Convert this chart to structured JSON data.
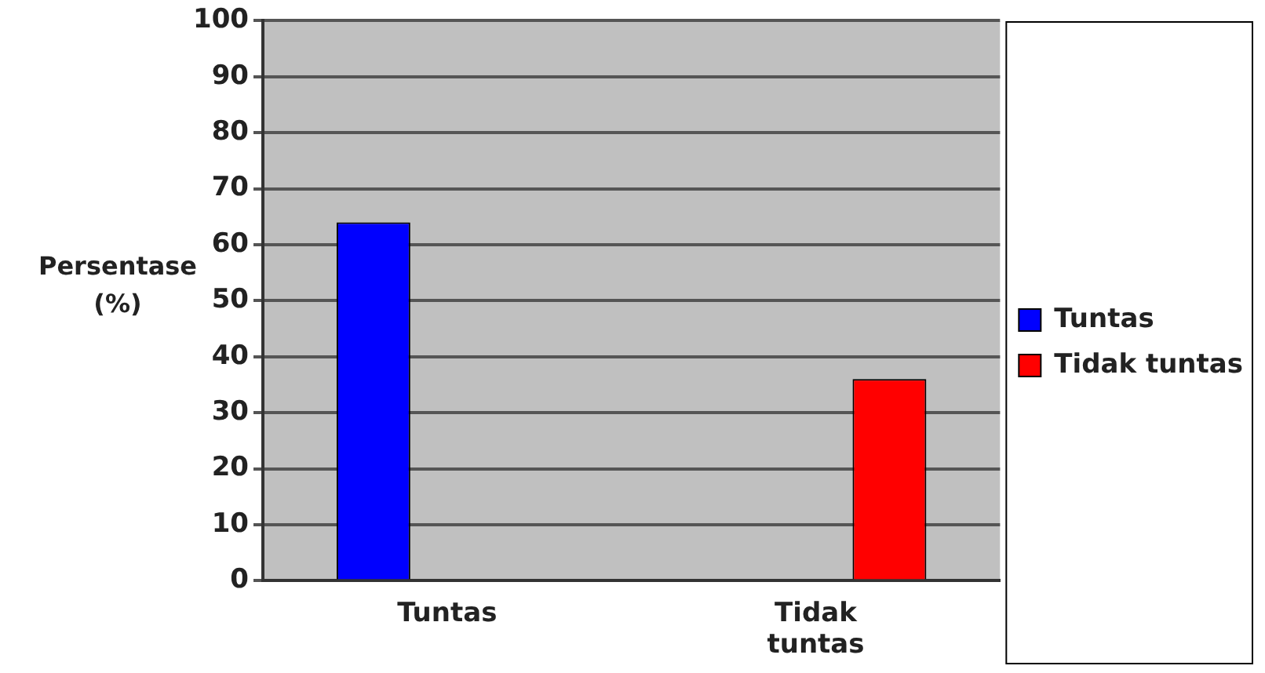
{
  "chart_data": {
    "type": "bar",
    "ylabel": "Persentase (%)",
    "categories": [
      "Tuntas",
      "Tidak tuntas"
    ],
    "series": [
      {
        "name": "Tuntas",
        "color": "#0000ff",
        "values": [
          64,
          null
        ]
      },
      {
        "name": "Tidak tuntas",
        "color": "#ff0000",
        "values": [
          null,
          36
        ]
      }
    ],
    "ylim": [
      0,
      100
    ],
    "yticks": [
      0,
      10,
      20,
      30,
      40,
      50,
      60,
      70,
      80,
      90,
      100
    ],
    "grid": "y",
    "legend": "right"
  }
}
